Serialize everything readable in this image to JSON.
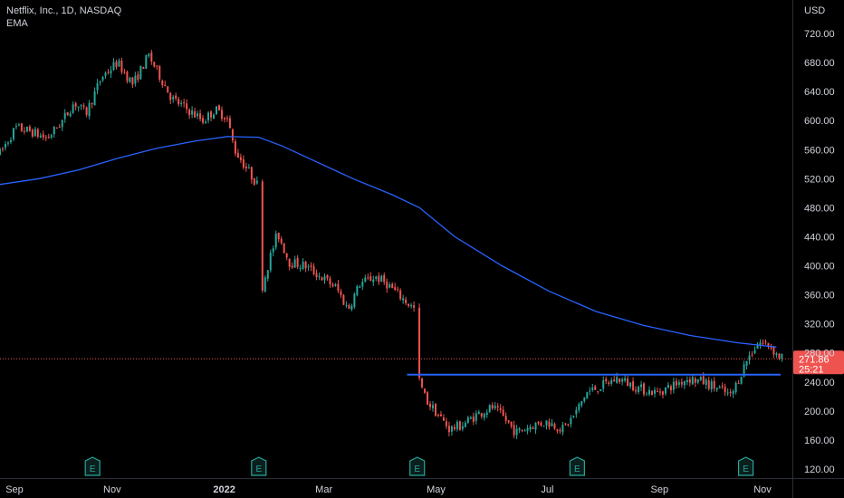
{
  "header": {
    "symbol_line": "Netflix, Inc., 1D, NASDAQ",
    "indicator": "EMA"
  },
  "chart_data": {
    "type": "candlestick",
    "currency_label": "USD",
    "y_ticks": [
      720,
      680,
      640,
      600,
      560,
      520,
      480,
      440,
      400,
      360,
      320,
      280,
      240,
      200,
      160,
      120
    ],
    "ylim": [
      110,
      742
    ],
    "x_ticks": [
      {
        "label": "Sep",
        "x": 0.0
      },
      {
        "label": "Nov",
        "x": 0.143
      },
      {
        "label": "2022",
        "x": 0.286,
        "bold": true
      },
      {
        "label": "Mar",
        "x": 0.413
      },
      {
        "label": "May",
        "x": 0.556
      },
      {
        "label": "Jul",
        "x": 0.698
      },
      {
        "label": "Sep",
        "x": 0.841
      },
      {
        "label": "Nov",
        "x": 0.984
      }
    ],
    "last_price": "271.86",
    "countdown": "25:21",
    "horizontal_line": 250,
    "earnings_markers": [
      {
        "label": "E",
        "x": 0.118
      },
      {
        "label": "E",
        "x": 0.33
      },
      {
        "label": "E",
        "x": 0.532
      },
      {
        "label": "E",
        "x": 0.736
      },
      {
        "label": "E",
        "x": 0.951
      }
    ],
    "price_path": [
      [
        0.0,
        555
      ],
      [
        0.02,
        590
      ],
      [
        0.04,
        585
      ],
      [
        0.06,
        575
      ],
      [
        0.08,
        600
      ],
      [
        0.095,
        625
      ],
      [
        0.11,
        610
      ],
      [
        0.13,
        660
      ],
      [
        0.15,
        680
      ],
      [
        0.17,
        650
      ],
      [
        0.19,
        690
      ],
      [
        0.205,
        660
      ],
      [
        0.22,
        630
      ],
      [
        0.24,
        615
      ],
      [
        0.26,
        600
      ],
      [
        0.275,
        615
      ],
      [
        0.29,
        605
      ],
      [
        0.3,
        560
      ],
      [
        0.315,
        535
      ],
      [
        0.33,
        510
      ],
      [
        0.335,
        370
      ],
      [
        0.345,
        410
      ],
      [
        0.355,
        445
      ],
      [
        0.37,
        405
      ],
      [
        0.39,
        400
      ],
      [
        0.41,
        385
      ],
      [
        0.43,
        370
      ],
      [
        0.445,
        340
      ],
      [
        0.46,
        375
      ],
      [
        0.48,
        385
      ],
      [
        0.495,
        375
      ],
      [
        0.51,
        360
      ],
      [
        0.53,
        340
      ],
      [
        0.535,
        245
      ],
      [
        0.545,
        215
      ],
      [
        0.56,
        195
      ],
      [
        0.575,
        175
      ],
      [
        0.59,
        180
      ],
      [
        0.61,
        195
      ],
      [
        0.63,
        205
      ],
      [
        0.645,
        190
      ],
      [
        0.66,
        170
      ],
      [
        0.68,
        180
      ],
      [
        0.7,
        185
      ],
      [
        0.72,
        175
      ],
      [
        0.735,
        195
      ],
      [
        0.75,
        225
      ],
      [
        0.77,
        235
      ],
      [
        0.79,
        245
      ],
      [
        0.8,
        240
      ],
      [
        0.82,
        230
      ],
      [
        0.84,
        225
      ],
      [
        0.86,
        235
      ],
      [
        0.88,
        245
      ],
      [
        0.9,
        240
      ],
      [
        0.92,
        230
      ],
      [
        0.935,
        220
      ],
      [
        0.945,
        245
      ],
      [
        0.955,
        270
      ],
      [
        0.97,
        295
      ],
      [
        0.985,
        290
      ],
      [
        0.995,
        275
      ]
    ],
    "ema_path": [
      [
        0.0,
        512
      ],
      [
        0.05,
        520
      ],
      [
        0.1,
        532
      ],
      [
        0.15,
        548
      ],
      [
        0.2,
        562
      ],
      [
        0.25,
        572
      ],
      [
        0.29,
        578
      ],
      [
        0.33,
        577
      ],
      [
        0.36,
        565
      ],
      [
        0.4,
        545
      ],
      [
        0.45,
        520
      ],
      [
        0.5,
        498
      ],
      [
        0.535,
        480
      ],
      [
        0.58,
        440
      ],
      [
        0.64,
        400
      ],
      [
        0.7,
        365
      ],
      [
        0.76,
        337
      ],
      [
        0.82,
        318
      ],
      [
        0.88,
        304
      ],
      [
        0.94,
        294
      ],
      [
        0.99,
        288
      ]
    ]
  }
}
